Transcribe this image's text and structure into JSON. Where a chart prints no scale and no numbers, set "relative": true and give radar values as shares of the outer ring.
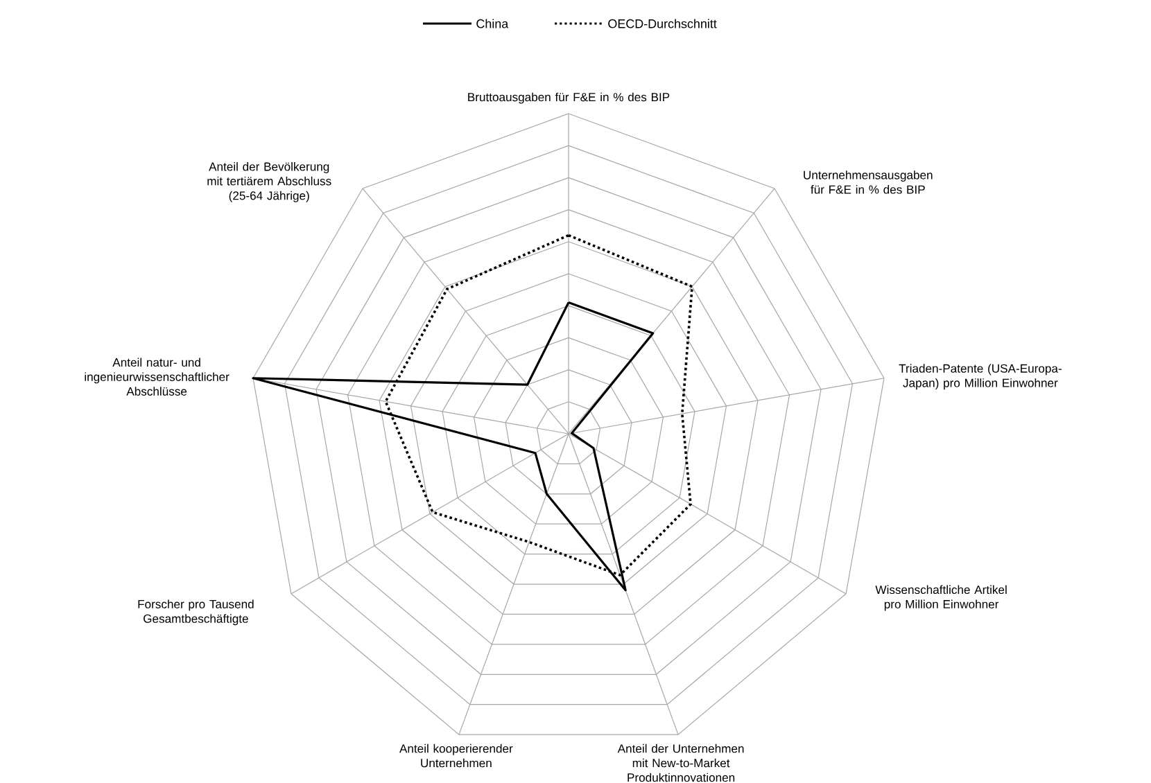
{
  "chart_data": {
    "type": "radar",
    "relative": true,
    "grid": true,
    "legend": "top",
    "marker": "none",
    "categories": [
      "Bruttoausgaben für F&E in % des BIP",
      "Unternehmensausgaben für F&E in % des BIP",
      "Triaden-Patente (USA-Europa-Japan) pro Million Einwohner",
      "Wissenschaftliche Artikel pro Million Einwohner",
      "Anteil der Unternehmen mit New-to-Market Produktinnovationen",
      "Anteil kooperierender Unternehmen",
      "Forscher pro Tausend Gesamtbeschäftigte",
      "Anteil natur- und ingenieurwissenschaftlicher Abschlüsse",
      "Anteil der Bevölkerung mit tertiärem Abschluss (25-64 Jährige)"
    ],
    "series": [
      {
        "name": "China",
        "color": "#000000",
        "line_style": "solid",
        "values": [
          0.41,
          0.41,
          0.01,
          0.09,
          0.52,
          0.2,
          0.12,
          1.0,
          0.2
        ]
      },
      {
        "name": "OECD-Durchschnitt",
        "color": "#000000",
        "line_style": "dotted",
        "values": [
          0.62,
          0.6,
          0.36,
          0.44,
          0.47,
          0.36,
          0.49,
          0.58,
          0.59
        ]
      }
    ]
  }
}
